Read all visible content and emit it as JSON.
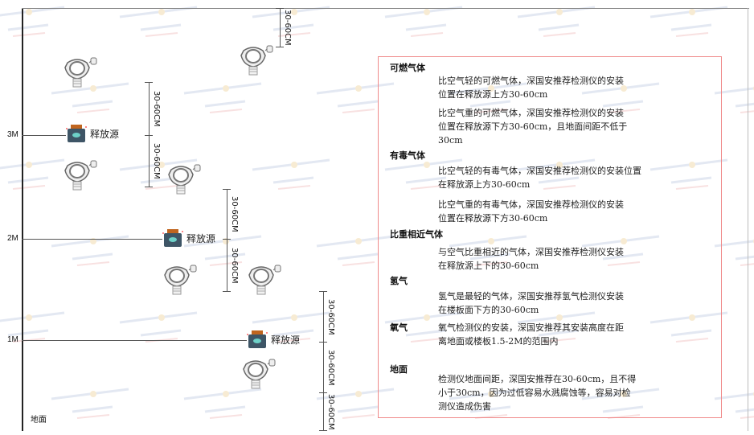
{
  "watermark": {
    "brand": "SINGOAN",
    "cn": "深国安"
  },
  "levels": [
    {
      "label": "3M"
    },
    {
      "label": "2M"
    },
    {
      "label": "1M"
    }
  ],
  "ground_label": "地面",
  "source_label": "释放源",
  "dimension_label": "30-60CM",
  "colors": {
    "panel_border": "#f08a8a",
    "source_body": "#3e5566",
    "source_cap": "#c0651f"
  },
  "panel": {
    "sections": [
      {
        "title": "可燃气体",
        "paragraphs": [
          [
            "比空气轻的可燃气体，深国安推荐检测仪的安装",
            "位置在释放源上方30-60cm"
          ],
          [
            "比空气重的可燃气体，深国安推荐检测仪的安装",
            "位置在释放源下方30-60cm，且地面间距不低于",
            "30cm"
          ]
        ]
      },
      {
        "title": "有毒气体",
        "paragraphs": [
          [
            "比空气轻的有毒气体，深国安推荐检测仪的安装位置",
            "在释放源上方30-60cm"
          ],
          [
            "比空气重的有毒气体，深国安推荐检测仪的安装",
            "位置在释放源下方30-60cm"
          ]
        ]
      },
      {
        "title": "比重相近气体",
        "paragraphs": [
          [
            "与空气比重相近的气体，深国安推荐检测仪安装",
            "在释放源上下的30-60cm"
          ]
        ]
      },
      {
        "title": "氢气",
        "paragraphs": [
          [
            "氢气是最轻的气体，深国安推荐氢气检测仪安装",
            "在楼板面下方的30-60cm"
          ]
        ]
      },
      {
        "title": "氧气",
        "paragraphs": [
          [
            "氧气检测仪的安装，深国安推荐其安装高度在距",
            "离地面或楼板1.5-2M的范围内"
          ]
        ]
      },
      {
        "title": "地面",
        "paragraphs": [
          [
            "检测仪地面间距，深国安推荐在30-60cm，且不得",
            "小于30cm，因为过低容易水溅腐蚀等，容易对检",
            "测仪造成伤害"
          ]
        ]
      }
    ]
  }
}
